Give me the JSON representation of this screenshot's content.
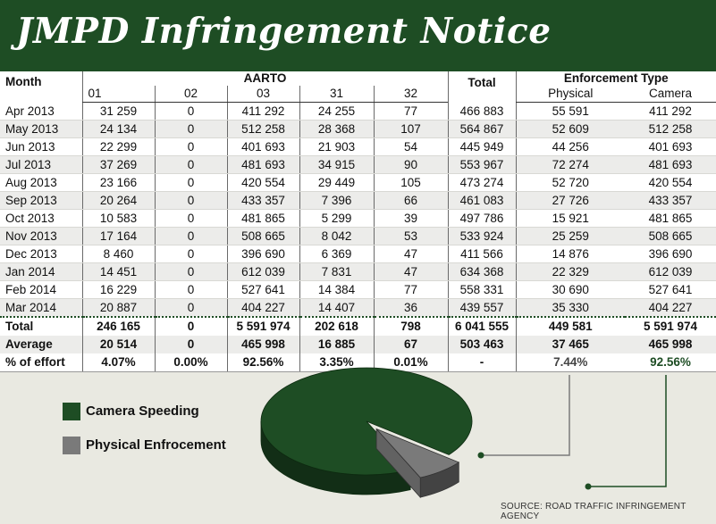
{
  "title": "JMPD Infringement Notice",
  "header": {
    "month": "Month",
    "aarto": "AARTO",
    "total": "Total",
    "enforcement_type": "Enforcement Type",
    "codes": [
      "01",
      "02",
      "03",
      "31",
      "32"
    ],
    "physical": "Physical",
    "camera": "Camera"
  },
  "rows": [
    {
      "month": "Apr 2013",
      "c01": "31 259",
      "c02": "0",
      "c03": "411 292",
      "c31": "24 255",
      "c32": "77",
      "total": "466 883",
      "physical": "55 591",
      "camera": "411 292"
    },
    {
      "month": "May 2013",
      "c01": "24 134",
      "c02": "0",
      "c03": "512 258",
      "c31": "28 368",
      "c32": "107",
      "total": "564 867",
      "physical": "52 609",
      "camera": "512 258"
    },
    {
      "month": "Jun 2013",
      "c01": "22 299",
      "c02": "0",
      "c03": "401 693",
      "c31": "21 903",
      "c32": "54",
      "total": "445 949",
      "physical": "44 256",
      "camera": "401 693"
    },
    {
      "month": "Jul 2013",
      "c01": "37 269",
      "c02": "0",
      "c03": "481 693",
      "c31": "34 915",
      "c32": "90",
      "total": "553 967",
      "physical": "72 274",
      "camera": "481 693"
    },
    {
      "month": "Aug 2013",
      "c01": "23 166",
      "c02": "0",
      "c03": "420 554",
      "c31": "29 449",
      "c32": "105",
      "total": "473 274",
      "physical": "52 720",
      "camera": "420 554"
    },
    {
      "month": "Sep 2013",
      "c01": "20 264",
      "c02": "0",
      "c03": "433 357",
      "c31": "7 396",
      "c32": "66",
      "total": "461 083",
      "physical": "27 726",
      "camera": "433 357"
    },
    {
      "month": "Oct 2013",
      "c01": "10 583",
      "c02": "0",
      "c03": "481 865",
      "c31": "5 299",
      "c32": "39",
      "total": "497 786",
      "physical": "15 921",
      "camera": "481 865"
    },
    {
      "month": "Nov 2013",
      "c01": "17 164",
      "c02": "0",
      "c03": "508 665",
      "c31": "8 042",
      "c32": "53",
      "total": "533 924",
      "physical": "25 259",
      "camera": "508 665"
    },
    {
      "month": "Dec 2013",
      "c01": "8 460",
      "c02": "0",
      "c03": "396 690",
      "c31": "6 369",
      "c32": "47",
      "total": "411 566",
      "physical": "14 876",
      "camera": "396 690"
    },
    {
      "month": "Jan 2014",
      "c01": "14 451",
      "c02": "0",
      "c03": "612 039",
      "c31": "7 831",
      "c32": "47",
      "total": "634 368",
      "physical": "22 329",
      "camera": "612 039"
    },
    {
      "month": "Feb 2014",
      "c01": "16 229",
      "c02": "0",
      "c03": "527 641",
      "c31": "14 384",
      "c32": "77",
      "total": "558 331",
      "physical": "30 690",
      "camera": "527 641"
    },
    {
      "month": "Mar 2014",
      "c01": "20 887",
      "c02": "0",
      "c03": "404 227",
      "c31": "14 407",
      "c32": "36",
      "total": "439 557",
      "physical": "35 330",
      "camera": "404 227"
    }
  ],
  "summary": [
    {
      "label": "Total",
      "c01": "246 165",
      "c02": "0",
      "c03": "5 591 974",
      "c31": "202 618",
      "c32": "798",
      "total": "6 041 555",
      "physical": "449 581",
      "camera": "5 591 974"
    },
    {
      "label": "Average",
      "c01": "20 514",
      "c02": "0",
      "c03": "465 998",
      "c31": "16 885",
      "c32": "67",
      "total": "503 463",
      "physical": "37 465",
      "camera": "465 998"
    },
    {
      "label": "% of effort",
      "c01": "4.07%",
      "c02": "0.00%",
      "c03": "92.56%",
      "c31": "3.35%",
      "c32": "0.01%",
      "total": "-",
      "physical": "7.44%",
      "camera": "92.56%"
    }
  ],
  "legend": {
    "camera": "Camera Speeding",
    "physical": "Physical Enfrocement"
  },
  "source": "SOURCE: ROAD TRAFFIC INFRINGEMENT AGENCY",
  "colors": {
    "banner": "#1e4d24",
    "camera": "#1e4d24",
    "physical": "#7a7a7a",
    "background": "#e9e9e1"
  },
  "chart_data": {
    "type": "pie",
    "title": "",
    "categories": [
      "Camera Speeding",
      "Physical Enfrocement"
    ],
    "values": [
      92.56,
      7.44
    ]
  }
}
